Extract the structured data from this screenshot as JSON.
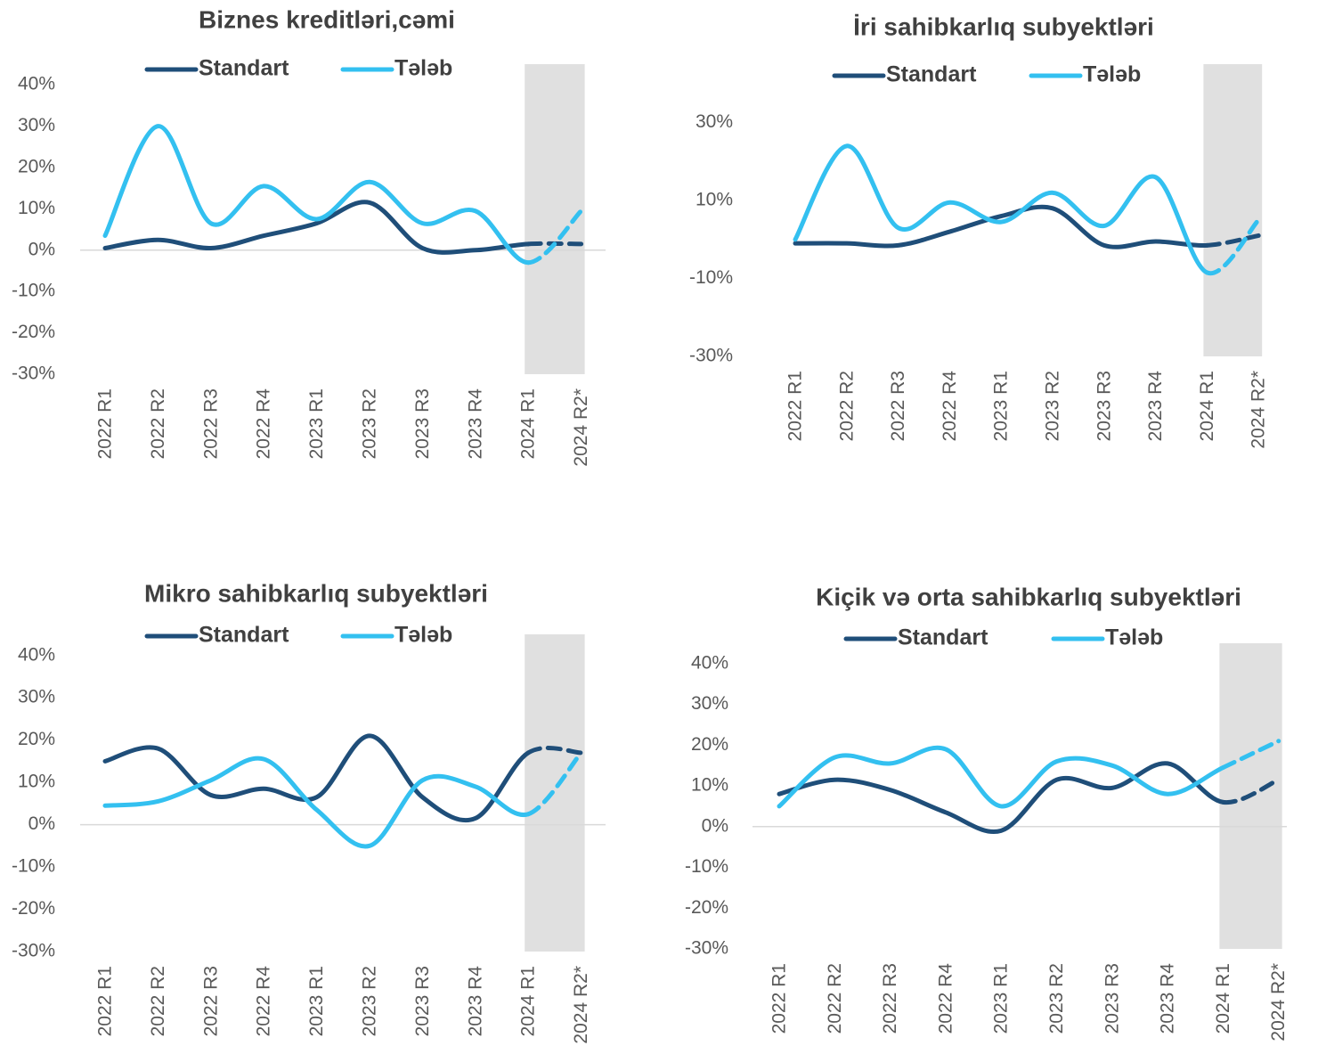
{
  "chart_data": [
    {
      "type": "line",
      "title": "Biznes kreditləri,cəmi",
      "categories": [
        "2022 R1",
        "2022 R2",
        "2022 R3",
        "2022 R4",
        "2023 R1",
        "2023 R2",
        "2023 R3",
        "2023 R4",
        "2024 R1",
        "2024 R2*"
      ],
      "series": [
        {
          "name": "Standart",
          "color": "#1f4e79",
          "values": [
            0.5,
            2.5,
            0.5,
            3.5,
            6.5,
            11.5,
            0.5,
            0,
            1.5,
            1.5
          ]
        },
        {
          "name": "Tələb",
          "color": "#33c0f0",
          "values": [
            3.5,
            30,
            6.5,
            15.5,
            7.5,
            16.5,
            6.5,
            9.5,
            -3,
            9.5
          ]
        }
      ],
      "ylim": [
        -30,
        45
      ],
      "yticks": [
        {
          "value": -30,
          "label": "-30%"
        },
        {
          "value": -20,
          "label": "-20%"
        },
        {
          "value": -10,
          "label": "-10%"
        },
        {
          "value": 0,
          "label": "0%"
        },
        {
          "value": 10,
          "label": "10%"
        },
        {
          "value": 20,
          "label": "20%"
        },
        {
          "value": 30,
          "label": "30%"
        },
        {
          "value": 40,
          "label": "40%"
        }
      ],
      "forecast_start": 8,
      "shade_color": "#e0e0e0"
    },
    {
      "type": "line",
      "title": "İri sahibkarlıq subyektləri",
      "categories": [
        "2022 R1",
        "2022 R2",
        "2022 R3",
        "2022 R4",
        "2023 R1",
        "2023 R2",
        "2023 R3",
        "2023 R4",
        "2024 R1",
        "2024 R2*"
      ],
      "series": [
        {
          "name": "Standart",
          "color": "#1f4e79",
          "values": [
            -1,
            -1,
            -1.5,
            2,
            6,
            8,
            -1.5,
            -0.5,
            -1.5,
            1
          ]
        },
        {
          "name": "Tələb",
          "color": "#33c0f0",
          "values": [
            0,
            24,
            3,
            9.5,
            4.5,
            12,
            3.5,
            16,
            -8.5,
            5
          ]
        }
      ],
      "ylim": [
        -30,
        45
      ],
      "yticks": [
        {
          "value": -30,
          "label": "-30%"
        },
        {
          "value": -10,
          "label": "-10%"
        },
        {
          "value": 10,
          "label": "10%"
        },
        {
          "value": 30,
          "label": "30%"
        }
      ],
      "forecast_start": 8,
      "shade_color": "#e0e0e0"
    },
    {
      "type": "line",
      "title": "Mikro sahibkarlıq subyektləri",
      "categories": [
        "2022 R1",
        "2022 R2",
        "2022 R3",
        "2022 R4",
        "2023 R1",
        "2023 R2",
        "2023 R3",
        "2023 R4",
        "2024 R1",
        "2024 R2*"
      ],
      "series": [
        {
          "name": "Standart",
          "color": "#1f4e79",
          "values": [
            15,
            18,
            7,
            8.5,
            6.5,
            21,
            6.5,
            1.5,
            17,
            17
          ]
        },
        {
          "name": "Tələb",
          "color": "#33c0f0",
          "values": [
            4.5,
            5.5,
            10.5,
            15.5,
            3.5,
            -5,
            10.5,
            9,
            2.5,
            17
          ]
        }
      ],
      "ylim": [
        -30,
        45
      ],
      "yticks": [
        {
          "value": -30,
          "label": "-30%"
        },
        {
          "value": -20,
          "label": "-20%"
        },
        {
          "value": -10,
          "label": "-10%"
        },
        {
          "value": 0,
          "label": "0%"
        },
        {
          "value": 10,
          "label": "10%"
        },
        {
          "value": 20,
          "label": "20%"
        },
        {
          "value": 30,
          "label": "30%"
        },
        {
          "value": 40,
          "label": "40%"
        }
      ],
      "forecast_start": 8,
      "shade_color": "#e0e0e0"
    },
    {
      "type": "line",
      "title": "Kiçik və orta sahibkarlıq subyektləri",
      "categories": [
        "2022 R1",
        "2022 R2",
        "2022 R3",
        "2022 R4",
        "2023 R1",
        "2023 R2",
        "2023 R3",
        "2023 R4",
        "2024 R1",
        "2024 R2*"
      ],
      "series": [
        {
          "name": "Standart",
          "color": "#1f4e79",
          "values": [
            8,
            11.5,
            9,
            3.5,
            -1,
            11.5,
            9.5,
            15.5,
            6,
            11.5
          ]
        },
        {
          "name": "Tələb",
          "color": "#33c0f0",
          "values": [
            5,
            17,
            15.5,
            19,
            5,
            16,
            15,
            8,
            14.5,
            21
          ]
        }
      ],
      "ylim": [
        -30,
        45
      ],
      "yticks": [
        {
          "value": -30,
          "label": "-30%"
        },
        {
          "value": -20,
          "label": "-20%"
        },
        {
          "value": -10,
          "label": "-10%"
        },
        {
          "value": 0,
          "label": "0%"
        },
        {
          "value": 10,
          "label": "10%"
        },
        {
          "value": 20,
          "label": "20%"
        },
        {
          "value": 30,
          "label": "30%"
        },
        {
          "value": 40,
          "label": "40%"
        }
      ],
      "forecast_start": 8,
      "shade_color": "#e0e0e0"
    }
  ]
}
